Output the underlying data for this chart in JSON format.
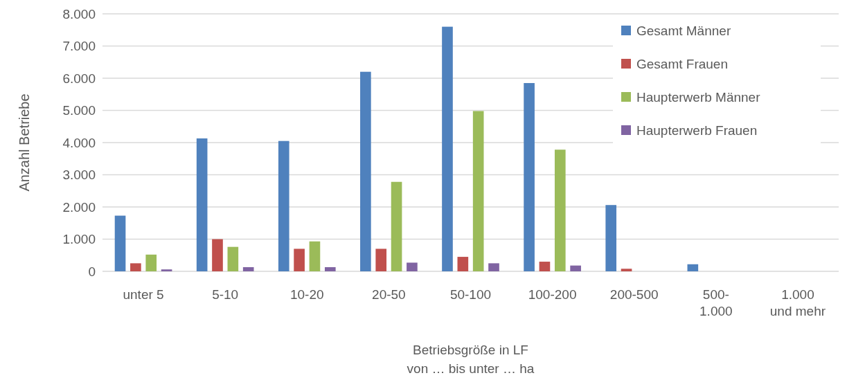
{
  "chart_data": {
    "type": "bar",
    "xlabel": "Betriebsgröße in LF\nvon … bis unter … ha",
    "ylabel": "Anzahl Betriebe",
    "categories": [
      "unter 5",
      "5-10",
      "10-20",
      "20-50",
      "50-100",
      "100-200",
      "200-500",
      "500-1.000",
      "1.000 und mehr"
    ],
    "series": [
      {
        "name": "Gesamt Männer",
        "color": "#4f81bd",
        "values": [
          1730,
          4130,
          4050,
          6200,
          7600,
          5850,
          2060,
          220,
          0
        ]
      },
      {
        "name": "Gesamt Frauen",
        "color": "#c0504d",
        "values": [
          250,
          1000,
          700,
          700,
          450,
          300,
          80,
          0,
          0
        ]
      },
      {
        "name": "Haupterwerb Männer",
        "color": "#9bbb59",
        "values": [
          520,
          760,
          930,
          2780,
          4980,
          3780,
          0,
          0,
          0
        ]
      },
      {
        "name": "Haupterwerb Frauen",
        "color": "#8064a2",
        "values": [
          60,
          130,
          130,
          270,
          250,
          180,
          0,
          0,
          0
        ]
      }
    ],
    "ylim": [
      0,
      8000
    ],
    "yticks": [
      {
        "value": 0,
        "label": "0"
      },
      {
        "value": 1000,
        "label": "1.000"
      },
      {
        "value": 2000,
        "label": "2.000"
      },
      {
        "value": 3000,
        "label": "3.000"
      },
      {
        "value": 4000,
        "label": "4.000"
      },
      {
        "value": 5000,
        "label": "5.000"
      },
      {
        "value": 6000,
        "label": "6.000"
      },
      {
        "value": 7000,
        "label": "7.000"
      },
      {
        "value": 8000,
        "label": "8.000"
      }
    ],
    "grid": "y",
    "legend": "top right"
  }
}
